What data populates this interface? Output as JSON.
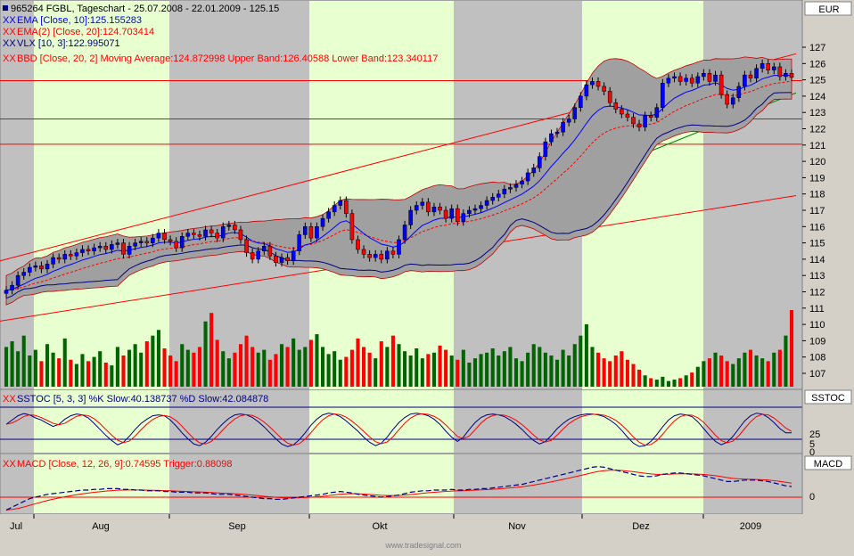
{
  "header": {
    "line1": "965264 FGBL, Tageschart - 25.07.2008 - 22.01.2009 - 125.15",
    "line2": "EMA [Close, 10]:125.155283",
    "line3": "EMA(2) [Close, 20]:124.703414",
    "line4": "VLX [10, 3]:122.995071",
    "line5": "BBD [Close, 20, 2] Moving Average:124.872998 Upper Band:126.40588 Lower Band:123.340117",
    "xx": "XX"
  },
  "axes": {
    "currency": "EUR",
    "sstoc_label": "SSTOC",
    "macd_label": "MACD",
    "price_ticks": [
      127,
      126,
      125,
      124,
      123,
      122,
      121,
      120,
      119,
      118,
      117,
      116,
      115,
      114,
      113,
      112,
      111,
      110,
      109,
      108,
      107
    ],
    "sstoc_ticks": [
      "25",
      "5",
      "0"
    ],
    "macd_ticks": [
      "0"
    ],
    "months": [
      "Jul",
      "Aug",
      "Sep",
      "Okt",
      "Nov",
      "Dez",
      "2009"
    ]
  },
  "sstoc_header": "SSTOC [5, 3, 3] %K Slow:40.138737 %D Slow:42.084878",
  "macd_header": "MACD [Close, 12, 26, 9]:0.74595 Trigger:0.88098",
  "watermark": "www.tradesignal.com",
  "colors": {
    "background": "#d4d0c8",
    "plot": "#c0c0c0",
    "month_band": "#e8ffd0",
    "up_candle": "#0000ff",
    "down_candle": "#ff0000",
    "up_volume": "#006400",
    "down_volume": "#ff0000",
    "bollinger_fill": "#a0a0a0",
    "ema10": "#0000ff",
    "ema20": "#ff0000",
    "vlx": "#000080",
    "trend_red": "#ff0000",
    "trend_green": "#008000"
  },
  "chart_data": {
    "type": "candlestick",
    "title": "965264 FGBL, Tageschart - 25.07.2008 - 22.01.2009 - 125.15",
    "ylim": [
      106,
      128
    ],
    "close": [
      112.1,
      112.4,
      113.0,
      113.2,
      113.5,
      113.6,
      113.4,
      113.7,
      114.1,
      114.0,
      114.3,
      114.2,
      114.4,
      114.6,
      114.5,
      114.7,
      114.8,
      114.6,
      114.9,
      115.0,
      114.3,
      114.8,
      115.0,
      115.1,
      115.0,
      115.3,
      115.6,
      115.2,
      115.1,
      114.7,
      115.4,
      115.6,
      115.5,
      115.4,
      115.8,
      115.6,
      115.3,
      116.0,
      116.1,
      115.8,
      115.2,
      114.4,
      114.0,
      114.5,
      114.8,
      114.2,
      113.8,
      114.1,
      113.9,
      114.5,
      115.5,
      116.0,
      115.3,
      116.0,
      116.5,
      116.9,
      117.3,
      117.6,
      116.8,
      115.2,
      114.6,
      114.3,
      114.1,
      114.3,
      114.0,
      114.5,
      114.3,
      115.2,
      116.1,
      117.0,
      117.3,
      117.5,
      116.9,
      117.2,
      117.0,
      116.5,
      117.1,
      116.3,
      116.8,
      117.0,
      117.1,
      117.3,
      117.6,
      117.8,
      118.0,
      118.3,
      118.4,
      118.6,
      118.8,
      119.3,
      119.6,
      120.3,
      121.2,
      121.7,
      121.8,
      122.4,
      122.6,
      123.3,
      124.0,
      124.7,
      124.9,
      124.6,
      124.3,
      123.6,
      123.2,
      122.9,
      122.7,
      122.3,
      122.1,
      122.8,
      122.7,
      123.3,
      124.8,
      125.1,
      125.2,
      124.9,
      125.1,
      124.8,
      125.2,
      125.4,
      124.9,
      125.3,
      124.1,
      123.5,
      123.9,
      124.6,
      125.3,
      125.1,
      125.7,
      126.0,
      125.6,
      125.8,
      125.2,
      125.4,
      125.15
    ],
    "volume": [
      28,
      32,
      25,
      36,
      22,
      26,
      18,
      30,
      24,
      20,
      34,
      19,
      16,
      23,
      18,
      21,
      25,
      17,
      15,
      28,
      22,
      26,
      30,
      24,
      32,
      36,
      40,
      27,
      22,
      18,
      30,
      26,
      24,
      28,
      46,
      52,
      33,
      25,
      20,
      24,
      30,
      36,
      28,
      24,
      26,
      19,
      23,
      30,
      28,
      34,
      26,
      28,
      33,
      37,
      28,
      23,
      25,
      19,
      21,
      26,
      34,
      28,
      24,
      20,
      32,
      28,
      36,
      30,
      25,
      22,
      27,
      20,
      23,
      24,
      29,
      26,
      22,
      19,
      26,
      17,
      20,
      23,
      24,
      27,
      22,
      25,
      28,
      20,
      18,
      24,
      30,
      28,
      24,
      22,
      19,
      26,
      22,
      30,
      36,
      44,
      28,
      24,
      20,
      18,
      22,
      25,
      19,
      16,
      12,
      8,
      6,
      5,
      7,
      4,
      5,
      6,
      8,
      10,
      14,
      18,
      20,
      24,
      22,
      18,
      16,
      20,
      24,
      26,
      22,
      20,
      18,
      24,
      26,
      36,
      54
    ],
    "sstoc_k": [
      60,
      70,
      80,
      85,
      82,
      75,
      70,
      62,
      55,
      60,
      72,
      80,
      84,
      82,
      75,
      62,
      48,
      34,
      22,
      12,
      18,
      32,
      48,
      62,
      72,
      80,
      82,
      80,
      70,
      56,
      40,
      26,
      14,
      10,
      18,
      32,
      48,
      62,
      74,
      82,
      84,
      82,
      76,
      66,
      54,
      40,
      26,
      14,
      8,
      12,
      24,
      40,
      58,
      72,
      82,
      86,
      84,
      78,
      68,
      56,
      44,
      30,
      18,
      10,
      16,
      30,
      48,
      64,
      76,
      84,
      86,
      84,
      80,
      72,
      60,
      44,
      30,
      20,
      30,
      48,
      64,
      76,
      82,
      84,
      82,
      78,
      70,
      60,
      48,
      34,
      22,
      14,
      20,
      34,
      50,
      62,
      72,
      78,
      82,
      84,
      84,
      82,
      78,
      70,
      60,
      46,
      30,
      16,
      8,
      10,
      20,
      36,
      54,
      70,
      80,
      84,
      82,
      78,
      66,
      50,
      34,
      20,
      12,
      18,
      32,
      50,
      68,
      80,
      86,
      84,
      76,
      64,
      50,
      40,
      40
    ],
    "macd": [
      -0.9,
      -0.7,
      -0.5,
      -0.3,
      -0.1,
      0.0,
      0.1,
      0.2,
      0.25,
      0.3,
      0.35,
      0.4,
      0.45,
      0.5,
      0.5,
      0.55,
      0.55,
      0.6,
      0.6,
      0.6,
      0.55,
      0.55,
      0.5,
      0.5,
      0.45,
      0.45,
      0.45,
      0.4,
      0.4,
      0.35,
      0.35,
      0.35,
      0.3,
      0.3,
      0.3,
      0.25,
      0.2,
      0.2,
      0.2,
      0.15,
      0.1,
      0.05,
      0.0,
      -0.05,
      -0.1,
      -0.1,
      -0.15,
      -0.15,
      -0.1,
      -0.05,
      0.0,
      0.05,
      0.1,
      0.15,
      0.2,
      0.3,
      0.35,
      0.4,
      0.35,
      0.3,
      0.2,
      0.15,
      0.1,
      0.05,
      0.0,
      0.05,
      0.1,
      0.15,
      0.25,
      0.35,
      0.4,
      0.45,
      0.45,
      0.5,
      0.5,
      0.5,
      0.55,
      0.5,
      0.5,
      0.55,
      0.55,
      0.6,
      0.6,
      0.65,
      0.7,
      0.75,
      0.8,
      0.85,
      0.9,
      1.0,
      1.1,
      1.2,
      1.3,
      1.4,
      1.5,
      1.6,
      1.7,
      1.8,
      1.9,
      2.0,
      2.1,
      2.15,
      2.1,
      2.0,
      1.9,
      1.8,
      1.7,
      1.6,
      1.5,
      1.45,
      1.45,
      1.5,
      1.6,
      1.65,
      1.7,
      1.7,
      1.65,
      1.6,
      1.55,
      1.5,
      1.4,
      1.3,
      1.2,
      1.1,
      1.1,
      1.15,
      1.2,
      1.2,
      1.2,
      1.15,
      1.1,
      1.0,
      0.9,
      0.8,
      0.75
    ]
  }
}
